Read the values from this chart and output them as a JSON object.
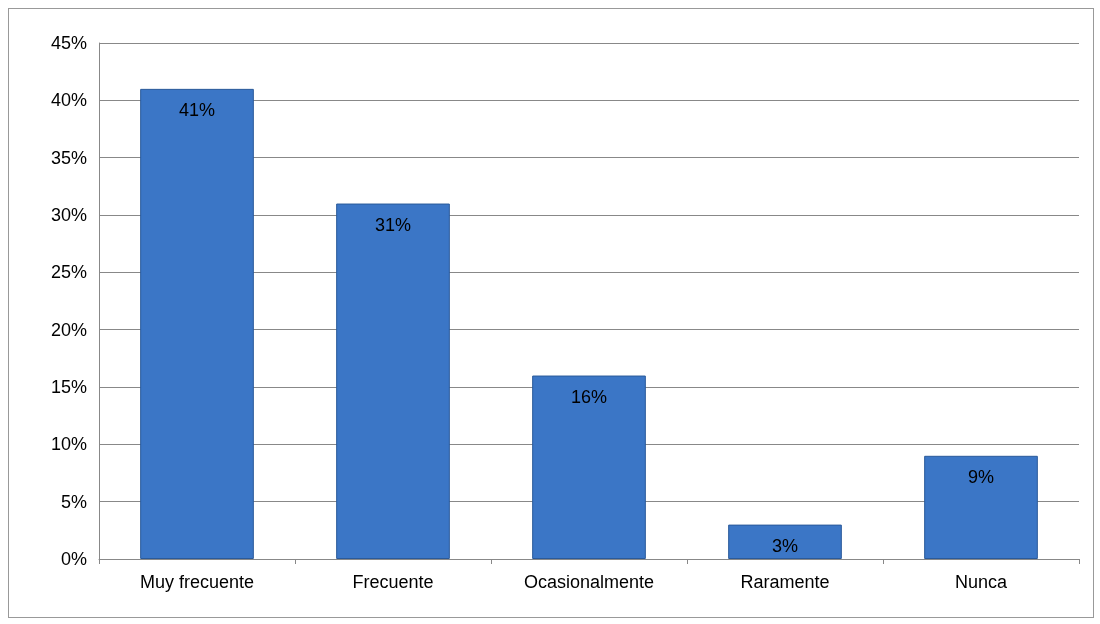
{
  "chart_data": {
    "type": "bar",
    "categories": [
      "Muy frecuente",
      "Frecuente",
      "Ocasionalmente",
      "Raramente",
      "Nunca"
    ],
    "values": [
      41,
      31,
      16,
      3,
      9
    ],
    "value_labels": [
      "41%",
      "31%",
      "16%",
      "3%",
      "9%"
    ],
    "color": "#3b76c6",
    "ylim": [
      0,
      45
    ],
    "yticks": [
      {
        "value": 0,
        "label": "0%"
      },
      {
        "value": 5,
        "label": "5%"
      },
      {
        "value": 10,
        "label": "10%"
      },
      {
        "value": 15,
        "label": "15%"
      },
      {
        "value": 20,
        "label": "20%"
      },
      {
        "value": 25,
        "label": "25%"
      },
      {
        "value": 30,
        "label": "30%"
      },
      {
        "value": 35,
        "label": "35%"
      },
      {
        "value": 40,
        "label": "40%"
      },
      {
        "value": 45,
        "label": "45%"
      }
    ],
    "grid": "y"
  }
}
